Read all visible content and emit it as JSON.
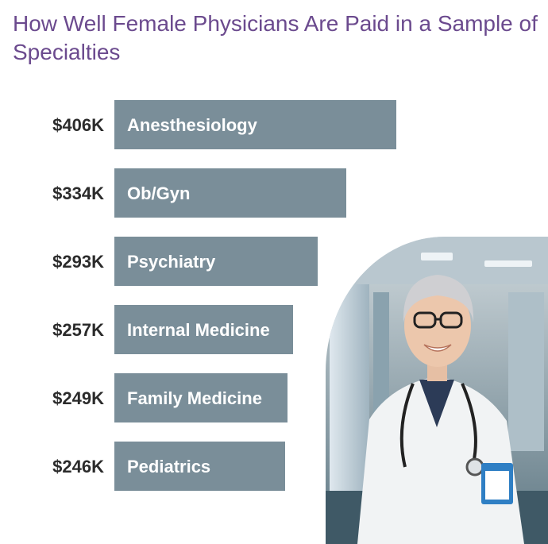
{
  "header": {
    "title": "How Well Female Physicians Are Paid in a Sample of Specialties"
  },
  "colors": {
    "title": "#6b4a8e",
    "bar": "#7a8e99",
    "bar_label": "#ffffff",
    "value_label": "#2b2b2b"
  },
  "photo": {
    "subject": "smiling female doctor in white coat with stethoscope and name badge, hospital corridor"
  },
  "chart_data": {
    "type": "bar",
    "orientation": "horizontal",
    "categories": [
      "Anesthesiology",
      "Ob/Gyn",
      "Psychiatry",
      "Internal Medicine",
      "Family Medicine",
      "Pediatrics"
    ],
    "values": [
      406,
      334,
      293,
      257,
      249,
      246
    ],
    "value_labels": [
      "$406K",
      "$334K",
      "$293K",
      "$257K",
      "$249K",
      "$246K"
    ],
    "unit": "thousand USD",
    "title": "How Well Female Physicians Are Paid in a Sample of Specialties",
    "xlabel": "",
    "ylabel": "",
    "xlim": [
      0,
      406
    ],
    "grid": false,
    "legend": "none"
  }
}
